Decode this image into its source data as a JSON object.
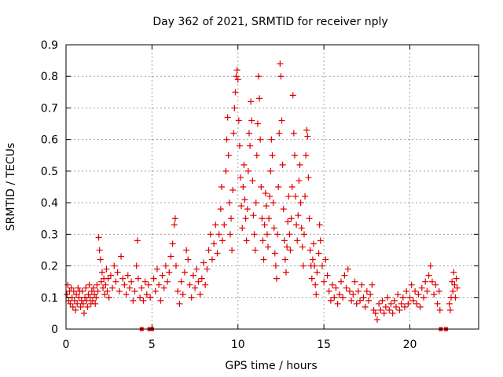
{
  "chart_data": {
    "type": "scatter",
    "title": "Day 362 of 2021, SRMTID for receiver nply",
    "xlabel": "GPS time / hours",
    "ylabel": "SRMTID / TECUs",
    "xlim": [
      0,
      24
    ],
    "ylim": [
      0,
      0.9
    ],
    "xticks": [
      0,
      5,
      10,
      15,
      20
    ],
    "xtick_labels": [
      "0",
      "5",
      "10",
      "15",
      "20"
    ],
    "yticks": [
      0,
      0.1,
      0.2,
      0.3,
      0.4,
      0.5,
      0.6,
      0.7,
      0.8,
      0.9
    ],
    "ytick_labels": [
      "0",
      "0.1",
      "0.2",
      "0.3",
      "0.4",
      "0.5",
      "0.6",
      "0.7",
      "0.8",
      "0.9"
    ],
    "grid": true,
    "marker": "+",
    "color": "#e00000",
    "series": [
      {
        "name": "SRMTID",
        "points": [
          [
            0.05,
            0.11
          ],
          [
            0.1,
            0.14
          ],
          [
            0.15,
            0.09
          ],
          [
            0.2,
            0.12
          ],
          [
            0.25,
            0.08
          ],
          [
            0.3,
            0.13
          ],
          [
            0.35,
            0.1
          ],
          [
            0.4,
            0.07
          ],
          [
            0.45,
            0.12
          ],
          [
            0.5,
            0.09
          ],
          [
            0.55,
            0.06
          ],
          [
            0.6,
            0.11
          ],
          [
            0.65,
            0.08
          ],
          [
            0.7,
            0.13
          ],
          [
            0.75,
            0.1
          ],
          [
            0.8,
            0.12
          ],
          [
            0.85,
            0.07
          ],
          [
            0.9,
            0.09
          ],
          [
            0.95,
            0.12
          ],
          [
            1.0,
            0.08
          ],
          [
            1.05,
            0.05
          ],
          [
            1.1,
            0.1
          ],
          [
            1.15,
            0.13
          ],
          [
            1.2,
            0.09
          ],
          [
            1.25,
            0.07
          ],
          [
            1.3,
            0.11
          ],
          [
            1.35,
            0.14
          ],
          [
            1.4,
            0.1
          ],
          [
            1.45,
            0.08
          ],
          [
            1.5,
            0.12
          ],
          [
            1.55,
            0.09
          ],
          [
            1.6,
            0.13
          ],
          [
            1.65,
            0.11
          ],
          [
            1.7,
            0.08
          ],
          [
            1.75,
            0.1
          ],
          [
            1.8,
            0.14
          ],
          [
            1.85,
            0.12
          ],
          [
            1.9,
            0.29
          ],
          [
            1.95,
            0.25
          ],
          [
            2.0,
            0.22
          ],
          [
            2.05,
            0.15
          ],
          [
            2.1,
            0.18
          ],
          [
            2.15,
            0.13
          ],
          [
            2.2,
            0.16
          ],
          [
            2.25,
            0.11
          ],
          [
            2.3,
            0.14
          ],
          [
            2.35,
            0.19
          ],
          [
            2.4,
            0.12
          ],
          [
            2.45,
            0.16
          ],
          [
            2.5,
            0.1
          ],
          [
            2.6,
            0.17
          ],
          [
            2.7,
            0.13
          ],
          [
            2.8,
            0.2
          ],
          [
            2.9,
            0.15
          ],
          [
            3.0,
            0.18
          ],
          [
            3.1,
            0.12
          ],
          [
            3.2,
            0.23
          ],
          [
            3.3,
            0.16
          ],
          [
            3.4,
            0.14
          ],
          [
            3.5,
            0.11
          ],
          [
            3.6,
            0.17
          ],
          [
            3.7,
            0.13
          ],
          [
            3.8,
            0.15
          ],
          [
            3.9,
            0.09
          ],
          [
            4.0,
            0.12
          ],
          [
            4.1,
            0.2
          ],
          [
            4.15,
            0.28
          ],
          [
            4.2,
            0.16
          ],
          [
            4.3,
            0.1
          ],
          [
            4.4,
            0.13
          ],
          [
            4.5,
            0.09
          ],
          [
            4.6,
            0.15
          ],
          [
            4.7,
            0.11
          ],
          [
            4.8,
            0.14
          ],
          [
            4.9,
            0.1
          ],
          [
            5.1,
            0.16
          ],
          [
            5.2,
            0.12
          ],
          [
            5.3,
            0.19
          ],
          [
            5.4,
            0.14
          ],
          [
            5.5,
            0.09
          ],
          [
            5.6,
            0.17
          ],
          [
            5.7,
            0.13
          ],
          [
            5.8,
            0.2
          ],
          [
            5.9,
            0.15
          ],
          [
            6.0,
            0.18
          ],
          [
            6.1,
            0.23
          ],
          [
            6.2,
            0.27
          ],
          [
            6.3,
            0.33
          ],
          [
            6.35,
            0.35
          ],
          [
            6.4,
            0.2
          ],
          [
            6.5,
            0.12
          ],
          [
            6.6,
            0.08
          ],
          [
            6.7,
            0.15
          ],
          [
            6.8,
            0.11
          ],
          [
            6.9,
            0.18
          ],
          [
            7.0,
            0.25
          ],
          [
            7.1,
            0.22
          ],
          [
            7.2,
            0.14
          ],
          [
            7.3,
            0.1
          ],
          [
            7.4,
            0.17
          ],
          [
            7.5,
            0.13
          ],
          [
            7.6,
            0.19
          ],
          [
            7.7,
            0.15
          ],
          [
            7.8,
            0.11
          ],
          [
            7.9,
            0.16
          ],
          [
            8.0,
            0.21
          ],
          [
            8.1,
            0.14
          ],
          [
            8.2,
            0.19
          ],
          [
            8.3,
            0.25
          ],
          [
            8.4,
            0.3
          ],
          [
            8.5,
            0.22
          ],
          [
            8.6,
            0.27
          ],
          [
            8.7,
            0.33
          ],
          [
            8.8,
            0.24
          ],
          [
            8.9,
            0.3
          ],
          [
            9.0,
            0.38
          ],
          [
            9.05,
            0.45
          ],
          [
            9.1,
            0.28
          ],
          [
            9.2,
            0.33
          ],
          [
            9.3,
            0.5
          ],
          [
            9.35,
            0.6
          ],
          [
            9.4,
            0.67
          ],
          [
            9.45,
            0.55
          ],
          [
            9.5,
            0.4
          ],
          [
            9.55,
            0.3
          ],
          [
            9.6,
            0.35
          ],
          [
            9.65,
            0.25
          ],
          [
            9.7,
            0.44
          ],
          [
            9.75,
            0.62
          ],
          [
            9.8,
            0.7
          ],
          [
            9.85,
            0.75
          ],
          [
            9.9,
            0.8
          ],
          [
            9.95,
            0.82
          ],
          [
            10.0,
            0.79
          ],
          [
            10.05,
            0.66
          ],
          [
            10.1,
            0.58
          ],
          [
            10.15,
            0.48
          ],
          [
            10.2,
            0.39
          ],
          [
            10.25,
            0.32
          ],
          [
            10.3,
            0.45
          ],
          [
            10.35,
            0.52
          ],
          [
            10.4,
            0.41
          ],
          [
            10.45,
            0.35
          ],
          [
            10.5,
            0.28
          ],
          [
            10.55,
            0.38
          ],
          [
            10.6,
            0.5
          ],
          [
            10.65,
            0.62
          ],
          [
            10.7,
            0.58
          ],
          [
            10.75,
            0.72
          ],
          [
            10.8,
            0.66
          ],
          [
            10.85,
            0.47
          ],
          [
            10.9,
            0.36
          ],
          [
            10.95,
            0.3
          ],
          [
            11.0,
            0.25
          ],
          [
            11.05,
            0.4
          ],
          [
            11.1,
            0.55
          ],
          [
            11.15,
            0.65
          ],
          [
            11.2,
            0.8
          ],
          [
            11.25,
            0.73
          ],
          [
            11.3,
            0.6
          ],
          [
            11.35,
            0.45
          ],
          [
            11.4,
            0.35
          ],
          [
            11.45,
            0.28
          ],
          [
            11.5,
            0.22
          ],
          [
            11.55,
            0.33
          ],
          [
            11.6,
            0.43
          ],
          [
            11.65,
            0.39
          ],
          [
            11.7,
            0.3
          ],
          [
            11.75,
            0.26
          ],
          [
            11.8,
            0.35
          ],
          [
            11.85,
            0.42
          ],
          [
            11.9,
            0.5
          ],
          [
            11.95,
            0.6
          ],
          [
            12.0,
            0.55
          ],
          [
            12.05,
            0.4
          ],
          [
            12.1,
            0.32
          ],
          [
            12.15,
            0.24
          ],
          [
            12.2,
            0.2
          ],
          [
            12.25,
            0.16
          ],
          [
            12.3,
            0.3
          ],
          [
            12.35,
            0.45
          ],
          [
            12.4,
            0.62
          ],
          [
            12.45,
            0.84
          ],
          [
            12.5,
            0.8
          ],
          [
            12.55,
            0.66
          ],
          [
            12.6,
            0.52
          ],
          [
            12.65,
            0.38
          ],
          [
            12.7,
            0.28
          ],
          [
            12.75,
            0.22
          ],
          [
            12.8,
            0.18
          ],
          [
            12.85,
            0.26
          ],
          [
            12.9,
            0.34
          ],
          [
            12.95,
            0.42
          ],
          [
            13.0,
            0.3
          ],
          [
            13.05,
            0.25
          ],
          [
            13.1,
            0.35
          ],
          [
            13.15,
            0.45
          ],
          [
            13.2,
            0.74
          ],
          [
            13.25,
            0.62
          ],
          [
            13.3,
            0.55
          ],
          [
            13.35,
            0.42
          ],
          [
            13.4,
            0.33
          ],
          [
            13.45,
            0.28
          ],
          [
            13.5,
            0.36
          ],
          [
            13.55,
            0.47
          ],
          [
            13.6,
            0.52
          ],
          [
            13.65,
            0.4
          ],
          [
            13.7,
            0.32
          ],
          [
            13.75,
            0.26
          ],
          [
            13.8,
            0.2
          ],
          [
            13.85,
            0.3
          ],
          [
            13.9,
            0.42
          ],
          [
            13.95,
            0.55
          ],
          [
            14.0,
            0.63
          ],
          [
            14.05,
            0.61
          ],
          [
            14.1,
            0.48
          ],
          [
            14.15,
            0.35
          ],
          [
            14.2,
            0.25
          ],
          [
            14.25,
            0.2
          ],
          [
            14.3,
            0.16
          ],
          [
            14.35,
            0.22
          ],
          [
            14.4,
            0.27
          ],
          [
            14.45,
            0.2
          ],
          [
            14.5,
            0.14
          ],
          [
            14.55,
            0.11
          ],
          [
            14.6,
            0.18
          ],
          [
            14.7,
            0.24
          ],
          [
            14.75,
            0.33
          ],
          [
            14.8,
            0.28
          ],
          [
            14.9,
            0.2
          ],
          [
            15.0,
            0.15
          ],
          [
            15.1,
            0.22
          ],
          [
            15.2,
            0.17
          ],
          [
            15.3,
            0.12
          ],
          [
            15.4,
            0.09
          ],
          [
            15.5,
            0.14
          ],
          [
            15.6,
            0.1
          ],
          [
            15.7,
            0.13
          ],
          [
            15.8,
            0.08
          ],
          [
            15.9,
            0.11
          ],
          [
            16.0,
            0.15
          ],
          [
            16.1,
            0.1
          ],
          [
            16.2,
            0.17
          ],
          [
            16.3,
            0.13
          ],
          [
            16.4,
            0.19
          ],
          [
            16.5,
            0.12
          ],
          [
            16.6,
            0.09
          ],
          [
            16.7,
            0.11
          ],
          [
            16.8,
            0.15
          ],
          [
            16.9,
            0.08
          ],
          [
            17.0,
            0.12
          ],
          [
            17.1,
            0.09
          ],
          [
            17.2,
            0.14
          ],
          [
            17.3,
            0.1
          ],
          [
            17.4,
            0.07
          ],
          [
            17.5,
            0.12
          ],
          [
            17.6,
            0.09
          ],
          [
            17.7,
            0.11
          ],
          [
            17.8,
            0.14
          ],
          [
            17.9,
            0.06
          ],
          [
            18.0,
            0.05
          ],
          [
            18.1,
            0.03
          ],
          [
            18.2,
            0.08
          ],
          [
            18.3,
            0.06
          ],
          [
            18.4,
            0.09
          ],
          [
            18.5,
            0.05
          ],
          [
            18.6,
            0.07
          ],
          [
            18.7,
            0.1
          ],
          [
            18.8,
            0.06
          ],
          [
            18.9,
            0.08
          ],
          [
            19.0,
            0.05
          ],
          [
            19.1,
            0.09
          ],
          [
            19.2,
            0.07
          ],
          [
            19.3,
            0.11
          ],
          [
            19.4,
            0.06
          ],
          [
            19.5,
            0.08
          ],
          [
            19.6,
            0.1
          ],
          [
            19.7,
            0.07
          ],
          [
            19.8,
            0.12
          ],
          [
            19.9,
            0.08
          ],
          [
            20.0,
            0.1
          ],
          [
            20.1,
            0.14
          ],
          [
            20.2,
            0.09
          ],
          [
            20.3,
            0.12
          ],
          [
            20.4,
            0.08
          ],
          [
            20.5,
            0.11
          ],
          [
            20.6,
            0.07
          ],
          [
            20.7,
            0.13
          ],
          [
            20.8,
            0.1
          ],
          [
            20.9,
            0.15
          ],
          [
            21.0,
            0.12
          ],
          [
            21.1,
            0.17
          ],
          [
            21.2,
            0.2
          ],
          [
            21.3,
            0.15
          ],
          [
            21.4,
            0.11
          ],
          [
            21.5,
            0.14
          ],
          [
            21.6,
            0.08
          ],
          [
            21.7,
            0.12
          ],
          [
            21.75,
            0.06
          ],
          [
            22.3,
            0.08
          ],
          [
            22.35,
            0.06
          ],
          [
            22.4,
            0.1
          ],
          [
            22.45,
            0.15
          ],
          [
            22.5,
            0.12
          ],
          [
            22.55,
            0.18
          ],
          [
            22.6,
            0.14
          ],
          [
            22.65,
            0.1
          ],
          [
            22.7,
            0.16
          ],
          [
            22.75,
            0.13
          ]
        ]
      }
    ],
    "zero_markers_x": [
      4.4,
      4.85,
      5.0,
      21.8,
      22.1
    ]
  }
}
